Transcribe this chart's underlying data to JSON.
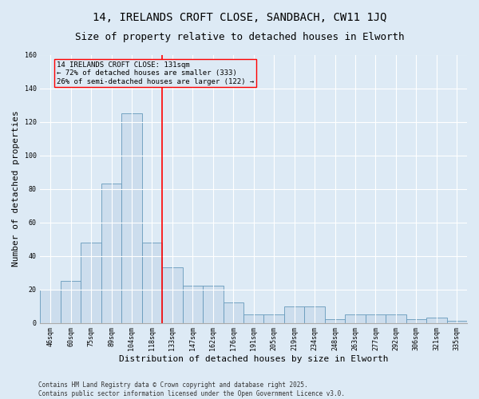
{
  "title": "14, IRELANDS CROFT CLOSE, SANDBACH, CW11 1JQ",
  "subtitle": "Size of property relative to detached houses in Elworth",
  "xlabel": "Distribution of detached houses by size in Elworth",
  "ylabel": "Number of detached properties",
  "bar_color": "#ccdded",
  "bar_edge_color": "#6699bb",
  "background_color": "#ddeaf5",
  "bin_labels": [
    "46sqm",
    "60sqm",
    "75sqm",
    "89sqm",
    "104sqm",
    "118sqm",
    "133sqm",
    "147sqm",
    "162sqm",
    "176sqm",
    "191sqm",
    "205sqm",
    "219sqm",
    "234sqm",
    "248sqm",
    "263sqm",
    "277sqm",
    "292sqm",
    "306sqm",
    "321sqm",
    "335sqm"
  ],
  "bar_heights": [
    20,
    25,
    48,
    83,
    125,
    48,
    33,
    22,
    22,
    12,
    5,
    5,
    10,
    10,
    2,
    5,
    5,
    5,
    2,
    3,
    1
  ],
  "ylim": [
    0,
    160
  ],
  "yticks": [
    0,
    20,
    40,
    60,
    80,
    100,
    120,
    140,
    160
  ],
  "annotation_text": "14 IRELANDS CROFT CLOSE: 131sqm\n← 72% of detached houses are smaller (333)\n26% of semi-detached houses are larger (122) →",
  "vline_bin": 5.5,
  "footer_text": "Contains HM Land Registry data © Crown copyright and database right 2025.\nContains public sector information licensed under the Open Government Licence v3.0.",
  "title_fontsize": 10,
  "subtitle_fontsize": 9,
  "annotation_fontsize": 6.5,
  "axis_label_fontsize": 8,
  "tick_fontsize": 6,
  "footer_fontsize": 5.5
}
